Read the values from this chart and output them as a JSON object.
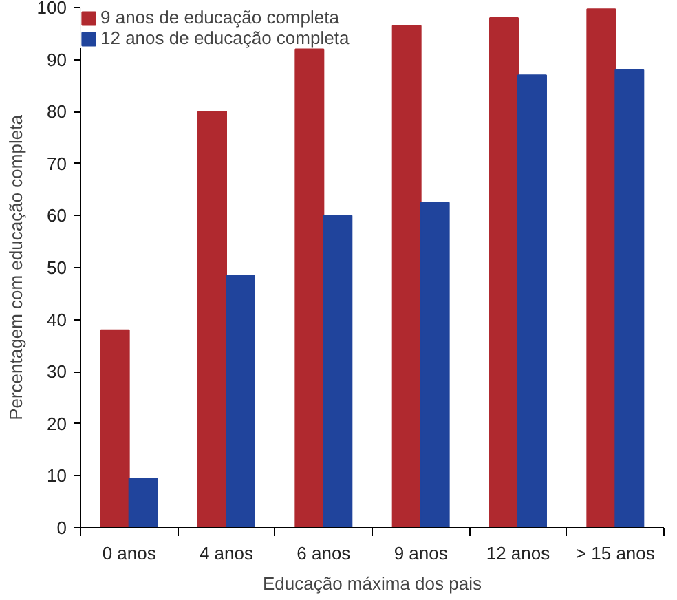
{
  "chart_data": {
    "type": "bar",
    "xlabel": "Educação máxima dos pais",
    "ylabel": "Percentagem com educação completa",
    "categories": [
      "0 anos",
      "4 anos",
      "6 anos",
      "9 anos",
      "12 anos",
      "> 15 anos"
    ],
    "series": [
      {
        "name": "9 anos de educação completa",
        "color": "#b0292f",
        "values": [
          38,
          80,
          92,
          96.5,
          98,
          99.7
        ]
      },
      {
        "name": "12 anos de educação completa",
        "color": "#20449c",
        "values": [
          9.5,
          48.5,
          60,
          62.5,
          87,
          88
        ]
      }
    ],
    "ylim": [
      0,
      100
    ],
    "yticks": [
      0,
      10,
      20,
      30,
      40,
      50,
      60,
      70,
      80,
      90,
      100
    ],
    "grid": false,
    "legend": "top left"
  }
}
